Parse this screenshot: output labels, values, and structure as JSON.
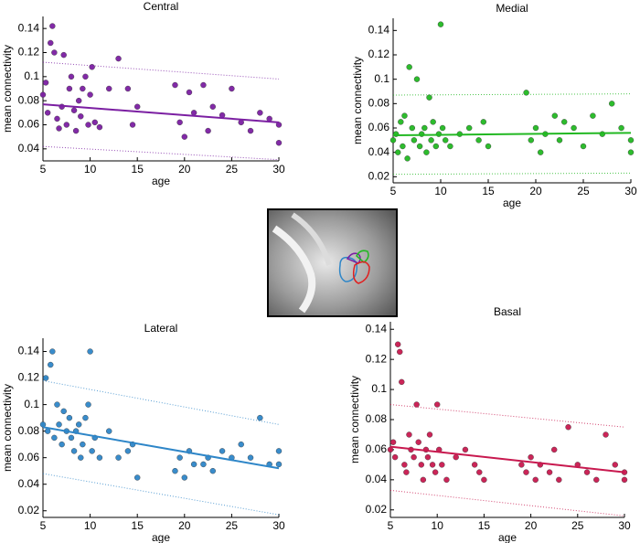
{
  "chart_data": [
    {
      "type": "scatter",
      "title": "Central",
      "xlabel": "age",
      "ylabel": "mean connectivity",
      "xlim": [
        5,
        30
      ],
      "ylim": [
        0.03,
        0.15
      ],
      "xticks": [
        5,
        10,
        15,
        20,
        25,
        30
      ],
      "yticks": [
        0.04,
        0.06,
        0.08,
        0.1,
        0.12,
        0.14
      ],
      "series": [
        {
          "color": "#7b1fa2",
          "x": [
            5,
            5.3,
            5.5,
            5.8,
            6,
            6.2,
            6.5,
            6.7,
            7,
            7.2,
            7.5,
            7.8,
            8,
            8.3,
            8.5,
            8.8,
            9,
            9.2,
            9.5,
            9.8,
            10,
            10.2,
            10.5,
            11,
            12,
            13,
            14,
            14.5,
            15,
            19,
            19.5,
            20,
            20.5,
            21,
            22,
            22.5,
            23,
            24,
            25,
            26,
            27,
            28,
            29,
            30,
            30
          ],
          "values": [
            0.085,
            0.095,
            0.07,
            0.128,
            0.142,
            0.12,
            0.065,
            0.057,
            0.075,
            0.118,
            0.06,
            0.09,
            0.1,
            0.072,
            0.055,
            0.08,
            0.067,
            0.09,
            0.1,
            0.06,
            0.085,
            0.108,
            0.062,
            0.058,
            0.09,
            0.115,
            0.09,
            0.06,
            0.075,
            0.093,
            0.062,
            0.05,
            0.087,
            0.07,
            0.093,
            0.055,
            0.075,
            0.068,
            0.09,
            0.062,
            0.055,
            0.07,
            0.065,
            0.06,
            0.045
          ]
        }
      ],
      "fit": {
        "x": [
          5,
          30
        ],
        "values": [
          0.077,
          0.062
        ]
      },
      "upper": {
        "x": [
          5,
          30
        ],
        "values": [
          0.112,
          0.098
        ]
      },
      "lower": {
        "x": [
          5,
          30
        ],
        "values": [
          0.042,
          0.031
        ]
      }
    },
    {
      "type": "scatter",
      "title": "Medial",
      "xlabel": "age",
      "ylabel": "mean connectivity",
      "xlim": [
        5,
        30
      ],
      "ylim": [
        0.015,
        0.15
      ],
      "xticks": [
        5,
        10,
        15,
        20,
        25,
        30
      ],
      "yticks": [
        0.02,
        0.04,
        0.06,
        0.08,
        0.1,
        0.12,
        0.14
      ],
      "series": [
        {
          "color": "#22b822",
          "x": [
            5,
            5.3,
            5.5,
            5.8,
            6,
            6.2,
            6.5,
            6.7,
            7,
            7.2,
            7.5,
            7.8,
            8,
            8.3,
            8.5,
            8.8,
            9,
            9.2,
            9.5,
            9.8,
            10,
            10.2,
            10.5,
            11,
            12,
            13,
            14,
            14.5,
            15,
            19,
            19.5,
            20,
            20.5,
            21,
            22,
            22.5,
            23,
            24,
            25,
            26,
            27,
            28,
            29,
            30,
            30
          ],
          "values": [
            0.05,
            0.055,
            0.04,
            0.065,
            0.045,
            0.07,
            0.035,
            0.11,
            0.06,
            0.05,
            0.1,
            0.045,
            0.055,
            0.06,
            0.04,
            0.085,
            0.05,
            0.065,
            0.045,
            0.055,
            0.145,
            0.06,
            0.05,
            0.045,
            0.055,
            0.06,
            0.05,
            0.065,
            0.045,
            0.089,
            0.05,
            0.06,
            0.04,
            0.055,
            0.07,
            0.05,
            0.065,
            0.06,
            0.045,
            0.07,
            0.055,
            0.08,
            0.06,
            0.05,
            0.04
          ]
        }
      ],
      "fit": {
        "x": [
          5,
          30
        ],
        "values": [
          0.054,
          0.056
        ]
      },
      "upper": {
        "x": [
          5,
          30
        ],
        "values": [
          0.087,
          0.088
        ]
      },
      "lower": {
        "x": [
          5,
          30
        ],
        "values": [
          0.022,
          0.023
        ]
      }
    },
    {
      "type": "scatter",
      "title": "Lateral",
      "xlabel": "age",
      "ylabel": "mean connectivity",
      "xlim": [
        5,
        30
      ],
      "ylim": [
        0.015,
        0.15
      ],
      "xticks": [
        5,
        10,
        15,
        20,
        25,
        30
      ],
      "yticks": [
        0.02,
        0.04,
        0.06,
        0.08,
        0.1,
        0.12,
        0.14
      ],
      "series": [
        {
          "color": "#2e86c8",
          "x": [
            5,
            5.3,
            5.5,
            5.8,
            6,
            6.2,
            6.5,
            6.7,
            7,
            7.2,
            7.5,
            7.8,
            8,
            8.3,
            8.5,
            8.8,
            9,
            9.2,
            9.5,
            9.8,
            10,
            10.2,
            10.5,
            11,
            12,
            13,
            14,
            14.5,
            15,
            19,
            19.5,
            20,
            20.5,
            21,
            22,
            22.5,
            23,
            24,
            25,
            26,
            27,
            28,
            29,
            30,
            30
          ],
          "values": [
            0.085,
            0.12,
            0.08,
            0.13,
            0.14,
            0.075,
            0.1,
            0.085,
            0.07,
            0.095,
            0.08,
            0.09,
            0.075,
            0.065,
            0.08,
            0.085,
            0.06,
            0.07,
            0.09,
            0.1,
            0.14,
            0.065,
            0.075,
            0.06,
            0.08,
            0.06,
            0.065,
            0.07,
            0.045,
            0.05,
            0.06,
            0.045,
            0.065,
            0.055,
            0.055,
            0.06,
            0.05,
            0.065,
            0.06,
            0.07,
            0.06,
            0.09,
            0.055,
            0.065,
            0.055
          ]
        }
      ],
      "fit": {
        "x": [
          5,
          30
        ],
        "values": [
          0.083,
          0.052
        ]
      },
      "upper": {
        "x": [
          5,
          30
        ],
        "values": [
          0.118,
          0.085
        ]
      },
      "lower": {
        "x": [
          5,
          30
        ],
        "values": [
          0.048,
          0.017
        ]
      }
    },
    {
      "type": "scatter",
      "title": "Basal",
      "xlabel": "age",
      "ylabel": "mean connectivity",
      "xlim": [
        5,
        30
      ],
      "ylim": [
        0.015,
        0.145
      ],
      "xticks": [
        5,
        10,
        15,
        20,
        25,
        30
      ],
      "yticks": [
        0.02,
        0.04,
        0.06,
        0.08,
        0.1,
        0.12,
        0.14
      ],
      "series": [
        {
          "color": "#c8194f",
          "x": [
            5,
            5.3,
            5.5,
            5.8,
            6,
            6.2,
            6.5,
            6.7,
            7,
            7.2,
            7.5,
            7.8,
            8,
            8.3,
            8.5,
            8.8,
            9,
            9.2,
            9.5,
            9.8,
            10,
            10.2,
            10.5,
            11,
            12,
            13,
            14,
            14.5,
            15,
            19,
            19.5,
            20,
            20.5,
            21,
            22,
            22.5,
            23,
            24,
            25,
            26,
            27,
            28,
            29,
            30,
            30
          ],
          "values": [
            0.06,
            0.065,
            0.055,
            0.13,
            0.125,
            0.105,
            0.05,
            0.045,
            0.07,
            0.06,
            0.055,
            0.09,
            0.065,
            0.05,
            0.04,
            0.06,
            0.055,
            0.07,
            0.05,
            0.045,
            0.09,
            0.06,
            0.05,
            0.04,
            0.055,
            0.06,
            0.05,
            0.045,
            0.04,
            0.05,
            0.045,
            0.055,
            0.04,
            0.05,
            0.045,
            0.06,
            0.04,
            0.075,
            0.05,
            0.045,
            0.04,
            0.07,
            0.05,
            0.045,
            0.04
          ]
        }
      ],
      "fit": {
        "x": [
          5,
          30
        ],
        "values": [
          0.062,
          0.045
        ]
      },
      "upper": {
        "x": [
          5,
          30
        ],
        "values": [
          0.09,
          0.075
        ]
      },
      "lower": {
        "x": [
          5,
          30
        ],
        "values": [
          0.033,
          0.016
        ]
      }
    }
  ]
}
